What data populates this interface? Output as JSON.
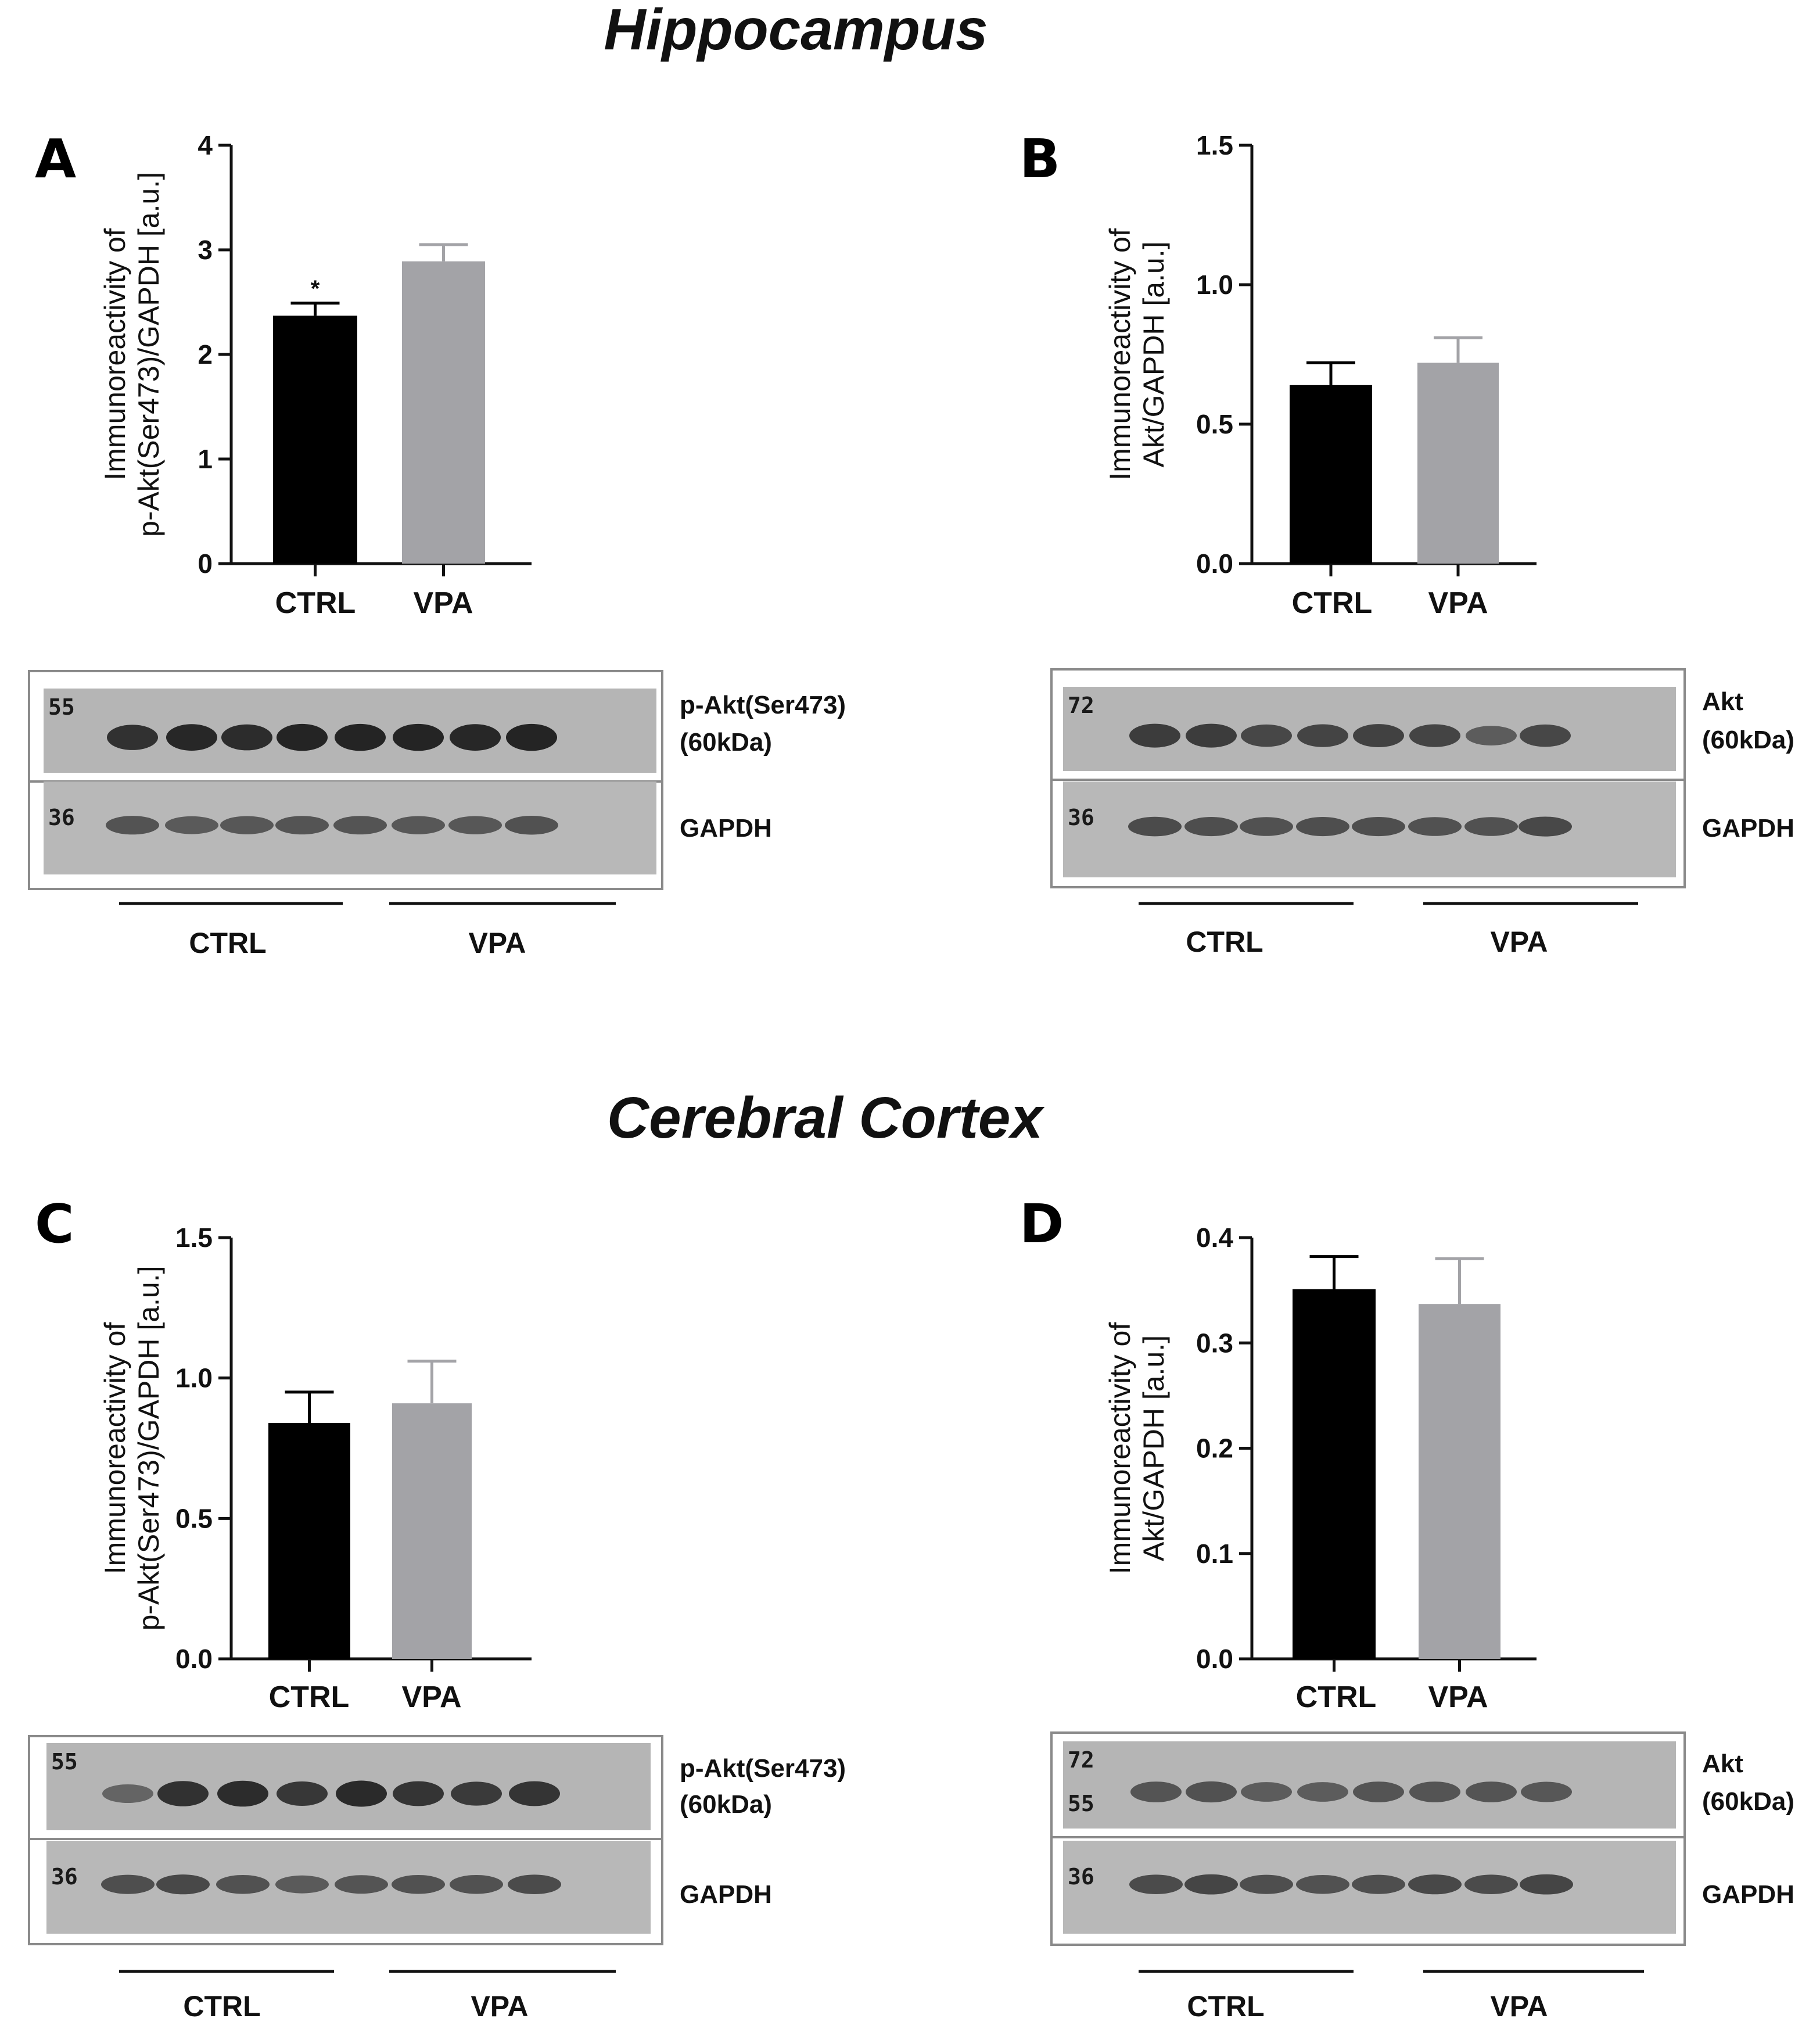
{
  "sections": [
    {
      "title": "Hippocampus"
    },
    {
      "title": "Cerebral Cortex"
    }
  ],
  "chart_data": [
    {
      "panel": "A",
      "type": "bar",
      "title": "",
      "ylabel_lines": [
        "Immunoreactivity of",
        "p-Akt(Ser473)/GAPDH [a.u.]"
      ],
      "xlabel": "",
      "categories": [
        "CTRL",
        "VPA"
      ],
      "values": [
        2.37,
        2.89
      ],
      "errors": [
        0.12,
        0.16
      ],
      "colors": [
        "#000000",
        "#a3a3a7"
      ],
      "ylim": [
        0,
        4
      ],
      "yticks": [
        "0",
        "1",
        "2",
        "3",
        "4"
      ],
      "annotations": [
        "*",
        ""
      ],
      "blot": {
        "label_main": "p-Akt(Ser473)",
        "label_sub": "(60kDa)",
        "label_ctrl": "GAPDH",
        "groups": [
          "CTRL",
          "VPA"
        ],
        "marker_top": [
          "55"
        ],
        "marker_bottom": "36",
        "main_band_intensity": [
          0.82,
          0.88,
          0.85,
          0.9,
          0.9,
          0.9,
          0.88,
          0.9
        ],
        "ctrl_band_intensity": [
          0.65,
          0.6,
          0.62,
          0.64,
          0.64,
          0.62,
          0.62,
          0.66
        ]
      }
    },
    {
      "panel": "B",
      "type": "bar",
      "title": "",
      "ylabel_lines": [
        "Immunoreactivity of",
        "Akt/GAPDH [a.u.]"
      ],
      "xlabel": "",
      "categories": [
        "CTRL",
        "VPA"
      ],
      "values": [
        0.64,
        0.72
      ],
      "errors": [
        0.08,
        0.09
      ],
      "colors": [
        "#000000",
        "#a3a3a7"
      ],
      "ylim": [
        0,
        1.5
      ],
      "yticks": [
        "0.0",
        "0.5",
        "1.0",
        "1.5"
      ],
      "annotations": [
        "",
        ""
      ],
      "blot": {
        "label_main": "Akt",
        "label_sub": "(60kDa)",
        "label_ctrl": "GAPDH",
        "groups": [
          "CTRL",
          "VPA"
        ],
        "marker_top": [
          "72"
        ],
        "marker_bottom": "36",
        "main_band_intensity": [
          0.75,
          0.75,
          0.68,
          0.7,
          0.72,
          0.7,
          0.55,
          0.68
        ],
        "ctrl_band_intensity": [
          0.7,
          0.68,
          0.66,
          0.68,
          0.68,
          0.66,
          0.66,
          0.72
        ]
      }
    },
    {
      "panel": "C",
      "type": "bar",
      "title": "",
      "ylabel_lines": [
        "Immunoreactivity of",
        "p-Akt(Ser473)/GAPDH [a.u.]"
      ],
      "xlabel": "",
      "categories": [
        "CTRL",
        "VPA"
      ],
      "values": [
        0.84,
        0.91
      ],
      "errors": [
        0.11,
        0.15
      ],
      "colors": [
        "#000000",
        "#a3a3a7"
      ],
      "ylim": [
        0,
        1.5
      ],
      "yticks": [
        "0.0",
        "0.5",
        "1.0",
        "1.5"
      ],
      "annotations": [
        "",
        ""
      ],
      "blot": {
        "label_main": "p-Akt(Ser473)",
        "label_sub": "(60kDa)",
        "label_ctrl": "GAPDH",
        "groups": [
          "CTRL",
          "VPA"
        ],
        "marker_top": [
          "55"
        ],
        "marker_bottom": "36",
        "main_band_intensity": [
          0.5,
          0.82,
          0.85,
          0.78,
          0.86,
          0.8,
          0.76,
          0.8
        ],
        "ctrl_band_intensity": [
          0.68,
          0.72,
          0.66,
          0.6,
          0.64,
          0.66,
          0.66,
          0.7
        ]
      }
    },
    {
      "panel": "D",
      "type": "bar",
      "title": "",
      "ylabel_lines": [
        "Immunoreactivity of",
        "Akt/GAPDH [a.u.]"
      ],
      "xlabel": "",
      "categories": [
        "CTRL",
        "VPA"
      ],
      "values": [
        0.351,
        0.337
      ],
      "errors": [
        0.031,
        0.043
      ],
      "colors": [
        "#000000",
        "#a3a3a7"
      ],
      "ylim": [
        0,
        0.4
      ],
      "yticks": [
        "0.0",
        "0.1",
        "0.2",
        "0.3",
        "0.4"
      ],
      "annotations": [
        "",
        ""
      ],
      "blot": {
        "label_main": "Akt",
        "label_sub": "(60kDa)",
        "label_ctrl": "GAPDH",
        "groups": [
          "CTRL",
          "VPA"
        ],
        "marker_top": [
          "72",
          "55"
        ],
        "marker_bottom": "36",
        "main_band_intensity": [
          0.6,
          0.62,
          0.55,
          0.55,
          0.6,
          0.6,
          0.6,
          0.58
        ],
        "ctrl_band_intensity": [
          0.7,
          0.74,
          0.68,
          0.66,
          0.68,
          0.72,
          0.7,
          0.74
        ]
      }
    }
  ]
}
